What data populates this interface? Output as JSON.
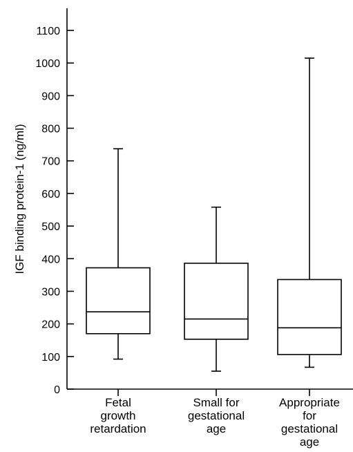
{
  "chart_data": {
    "type": "box",
    "title": "",
    "xlabel": "",
    "ylabel": "IGF binding protein-1 (ng/ml)",
    "ylim": [
      0,
      1100
    ],
    "yticks": [
      0,
      100,
      200,
      300,
      400,
      500,
      600,
      700,
      800,
      900,
      1000,
      1100
    ],
    "grid": false,
    "categories": [
      [
        "Fetal",
        "growth",
        "retardation"
      ],
      [
        "Small for",
        "gestational",
        "age"
      ],
      [
        "Appropriate",
        "for",
        "gestational",
        "age"
      ]
    ],
    "boxes": [
      {
        "min": 92,
        "q1": 170,
        "median": 237,
        "q3": 372,
        "max": 737
      },
      {
        "min": 55,
        "q1": 153,
        "median": 215,
        "q3": 386,
        "max": 558
      },
      {
        "min": 67,
        "q1": 106,
        "median": 188,
        "q3": 336,
        "max": 1015
      }
    ]
  }
}
